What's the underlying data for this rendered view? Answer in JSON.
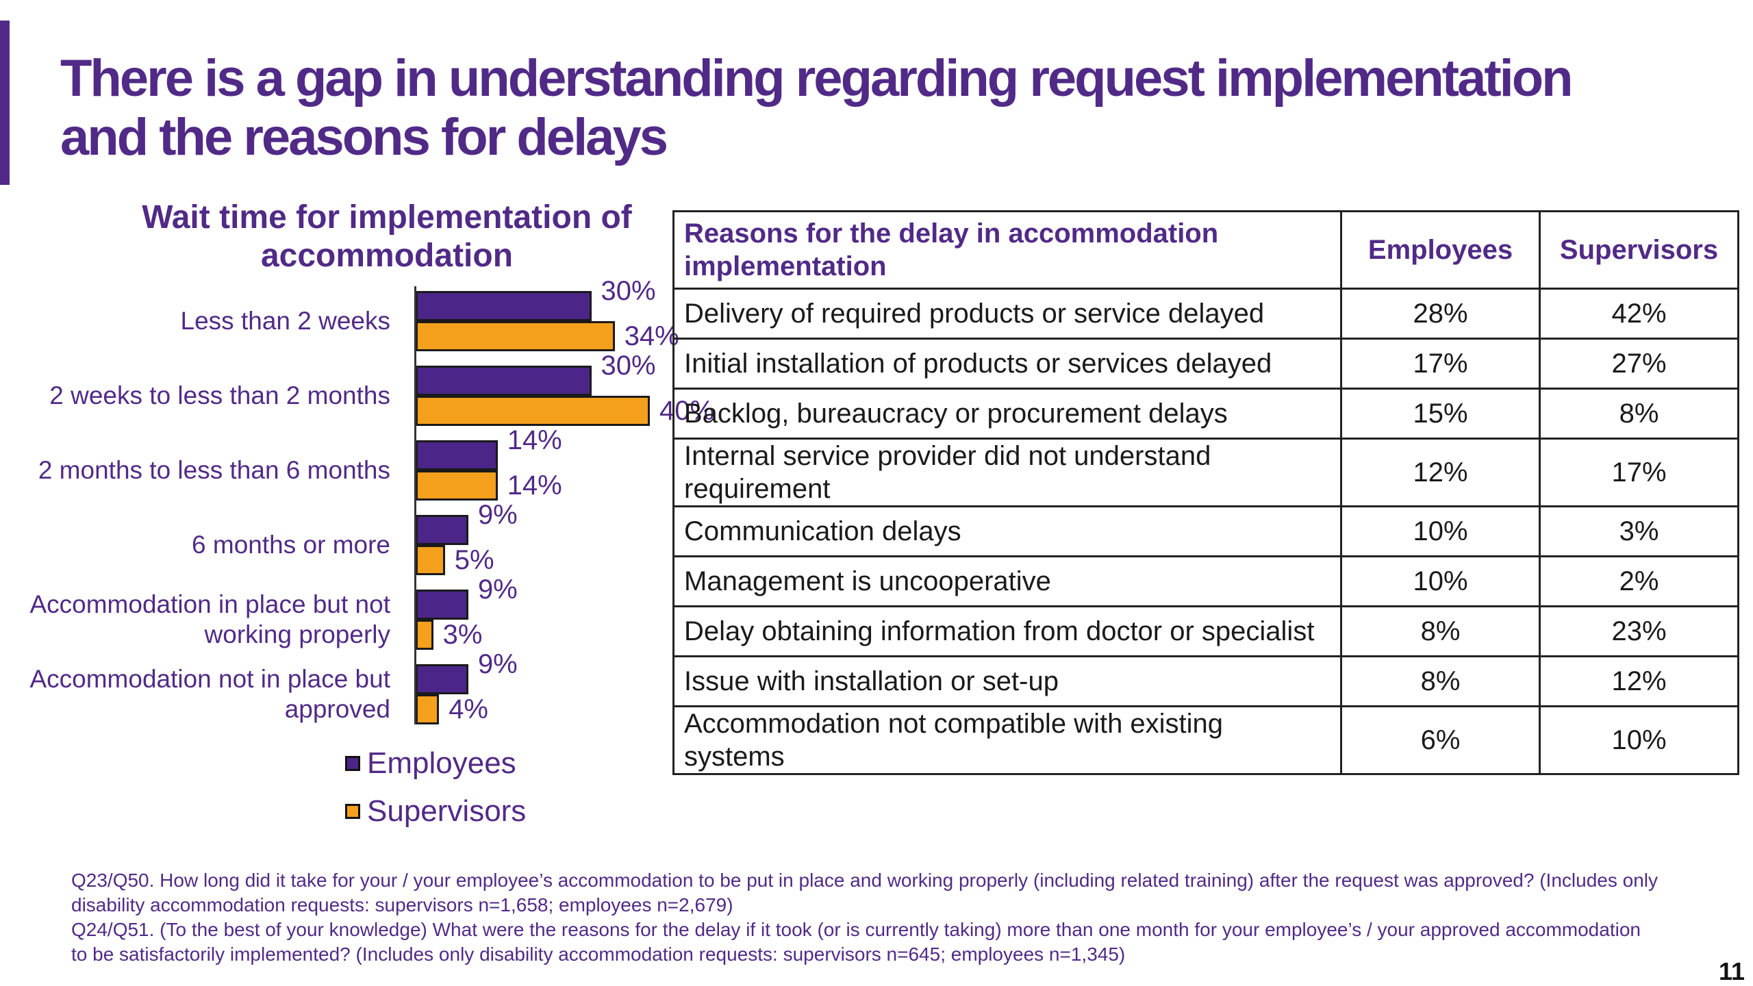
{
  "slide": {
    "title": "There is a gap in understanding regarding request implementation and the reasons for delays",
    "page_number": "11",
    "accent_color": "#512a87"
  },
  "chart_data": {
    "type": "bar",
    "orientation": "horizontal",
    "title": "Wait time for implementation of accommodation",
    "categories": [
      "Less than 2 weeks",
      "2 weeks to less than 2 months",
      "2 months to less than 6 months",
      "6 months or more",
      "Accommodation in place but not working properly",
      "Accommodation not in place but approved"
    ],
    "series": [
      {
        "name": "Employees",
        "color": "#4b2688",
        "values": [
          30,
          30,
          14,
          9,
          9,
          9
        ],
        "labels": [
          "30%",
          "30%",
          "14%",
          "9%",
          "9%",
          "9%"
        ]
      },
      {
        "name": "Supervisors",
        "color": "#f5a01c",
        "values": [
          34,
          40,
          14,
          5,
          3,
          4
        ],
        "labels": [
          "34%",
          "40%",
          "14%",
          "5%",
          "3%",
          "4%"
        ]
      }
    ],
    "xlim": [
      0,
      40
    ],
    "legend_position": "bottom"
  },
  "table": {
    "headers": [
      "Reasons for the delay in accommodation implementation",
      "Employees",
      "Supervisors"
    ],
    "rows": [
      [
        "Delivery of required products or service delayed",
        "28%",
        "42%"
      ],
      [
        "Initial installation of products or services delayed",
        "17%",
        "27%"
      ],
      [
        "Backlog, bureaucracy or procurement delays",
        "15%",
        "8%"
      ],
      [
        "Internal service provider did not understand requirement",
        "12%",
        "17%"
      ],
      [
        "Communication delays",
        "10%",
        "3%"
      ],
      [
        "Management is uncooperative",
        "10%",
        "2%"
      ],
      [
        "Delay obtaining information from doctor or specialist",
        "8%",
        "23%"
      ],
      [
        "Issue with installation or set-up",
        "8%",
        "12%"
      ],
      [
        "Accommodation not compatible with existing systems",
        "6%",
        "10%"
      ]
    ]
  },
  "footnotes": [
    "Q23/Q50. How long did it take for your / your employee’s accommodation to be put in place and working properly (including related training) after the request was approved? (Includes only disability accommodation requests: supervisors n=1,658; employees n=2,679)",
    "Q24/Q51. (To the best of your knowledge) What were the reasons for the delay if it took (or is currently taking) more than one month for your employee’s / your approved accommodation to be satisfactorily implemented? (Includes only disability accommodation requests: supervisors n=645; employees n=1,345)"
  ]
}
